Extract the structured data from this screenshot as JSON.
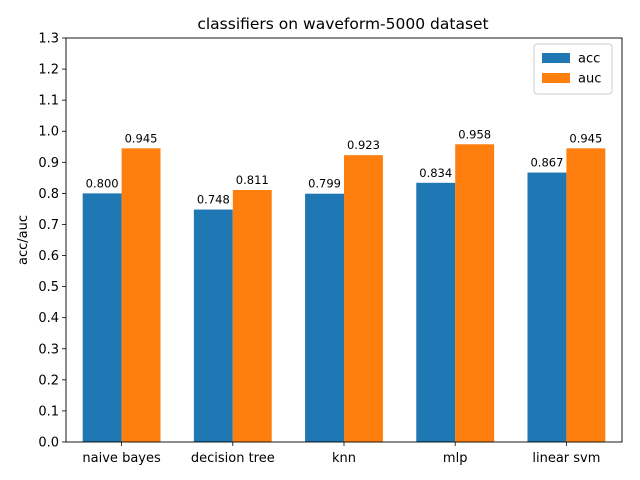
{
  "chart_data": {
    "type": "bar",
    "title": "classifiers on waveform-5000 dataset",
    "xlabel": "",
    "ylabel": "acc/auc",
    "categories": [
      "naive bayes",
      "decision tree",
      "knn",
      "mlp",
      "linear svm"
    ],
    "series": [
      {
        "name": "acc",
        "color": "#1f77b4",
        "values": [
          0.8,
          0.748,
          0.799,
          0.834,
          0.867
        ],
        "labels": [
          "0.800",
          "0.748",
          "0.799",
          "0.834",
          "0.867"
        ]
      },
      {
        "name": "auc",
        "color": "#ff7f0e",
        "values": [
          0.945,
          0.811,
          0.923,
          0.958,
          0.945
        ],
        "labels": [
          "0.945",
          "0.811",
          "0.923",
          "0.958",
          "0.945"
        ]
      }
    ],
    "ylim": [
      0,
      1.3
    ],
    "yticks": [
      "0.0",
      "0.1",
      "0.2",
      "0.3",
      "0.4",
      "0.5",
      "0.6",
      "0.7",
      "0.8",
      "0.9",
      "1.0",
      "1.1",
      "1.2",
      "1.3"
    ],
    "grid": false,
    "legend_position": "top-right"
  }
}
